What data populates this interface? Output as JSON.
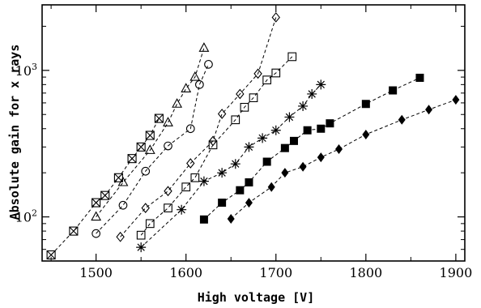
{
  "chart_data": {
    "type": "scatter",
    "xlabel": "High voltage [V]",
    "ylabel": "Absolute gain for x rays",
    "xlim": [
      1440,
      1910
    ],
    "ylim": [
      50,
      2800
    ],
    "y_scale": "log",
    "x_ticks": [
      {
        "value": 1500,
        "label": "1500"
      },
      {
        "value": 1600,
        "label": "1600"
      },
      {
        "value": 1700,
        "label": "1700"
      },
      {
        "value": 1800,
        "label": "1800"
      },
      {
        "value": 1900,
        "label": "1900"
      }
    ],
    "y_ticks": [
      {
        "value": 100,
        "base": "10",
        "exponent": "2"
      },
      {
        "value": 1000,
        "base": "10",
        "exponent": "3"
      }
    ],
    "grid": false,
    "line_style": "dashed",
    "series": [
      {
        "marker": "boxed-x",
        "points": [
          [
            1450,
            55
          ],
          [
            1475,
            80
          ],
          [
            1500,
            125
          ],
          [
            1510,
            140
          ],
          [
            1525,
            185
          ],
          [
            1540,
            250
          ],
          [
            1550,
            300
          ],
          [
            1560,
            360
          ],
          [
            1570,
            470
          ]
        ]
      },
      {
        "marker": "triangle",
        "points": [
          [
            1500,
            100
          ],
          [
            1530,
            172
          ],
          [
            1560,
            285
          ],
          [
            1580,
            440
          ],
          [
            1590,
            590
          ],
          [
            1600,
            750
          ],
          [
            1610,
            900
          ],
          [
            1620,
            1420
          ]
        ]
      },
      {
        "marker": "circle",
        "points": [
          [
            1500,
            77
          ],
          [
            1530,
            120
          ],
          [
            1555,
            205
          ],
          [
            1580,
            305
          ],
          [
            1605,
            400
          ],
          [
            1615,
            800
          ],
          [
            1625,
            1100
          ]
        ]
      },
      {
        "marker": "diamond-open",
        "points": [
          [
            1527,
            73
          ],
          [
            1555,
            115
          ],
          [
            1580,
            150
          ],
          [
            1605,
            232
          ],
          [
            1630,
            330
          ],
          [
            1640,
            505
          ],
          [
            1660,
            690
          ],
          [
            1680,
            950
          ],
          [
            1700,
            2300
          ]
        ]
      },
      {
        "marker": "square-open",
        "points": [
          [
            1550,
            75
          ],
          [
            1560,
            90
          ],
          [
            1580,
            115
          ],
          [
            1600,
            160
          ],
          [
            1610,
            185
          ],
          [
            1630,
            310
          ],
          [
            1655,
            460
          ],
          [
            1665,
            560
          ],
          [
            1675,
            650
          ],
          [
            1690,
            860
          ],
          [
            1700,
            960
          ],
          [
            1718,
            1240
          ]
        ]
      },
      {
        "marker": "asterisk",
        "points": [
          [
            1550,
            62
          ],
          [
            1595,
            112
          ],
          [
            1620,
            175
          ],
          [
            1640,
            200
          ],
          [
            1655,
            230
          ],
          [
            1670,
            300
          ],
          [
            1685,
            345
          ],
          [
            1700,
            390
          ],
          [
            1715,
            480
          ],
          [
            1730,
            570
          ],
          [
            1740,
            690
          ],
          [
            1750,
            800
          ]
        ]
      },
      {
        "marker": "square-filled",
        "points": [
          [
            1620,
            96
          ],
          [
            1640,
            125
          ],
          [
            1660,
            152
          ],
          [
            1670,
            172
          ],
          [
            1690,
            238
          ],
          [
            1710,
            295
          ],
          [
            1720,
            330
          ],
          [
            1735,
            390
          ],
          [
            1750,
            400
          ],
          [
            1760,
            435
          ],
          [
            1800,
            590
          ],
          [
            1830,
            730
          ],
          [
            1860,
            890
          ]
        ]
      },
      {
        "marker": "diamond-filled",
        "points": [
          [
            1650,
            97
          ],
          [
            1670,
            125
          ],
          [
            1695,
            160
          ],
          [
            1710,
            200
          ],
          [
            1730,
            220
          ],
          [
            1750,
            255
          ],
          [
            1770,
            290
          ],
          [
            1800,
            365
          ],
          [
            1840,
            460
          ],
          [
            1870,
            540
          ],
          [
            1900,
            630
          ]
        ]
      }
    ]
  }
}
